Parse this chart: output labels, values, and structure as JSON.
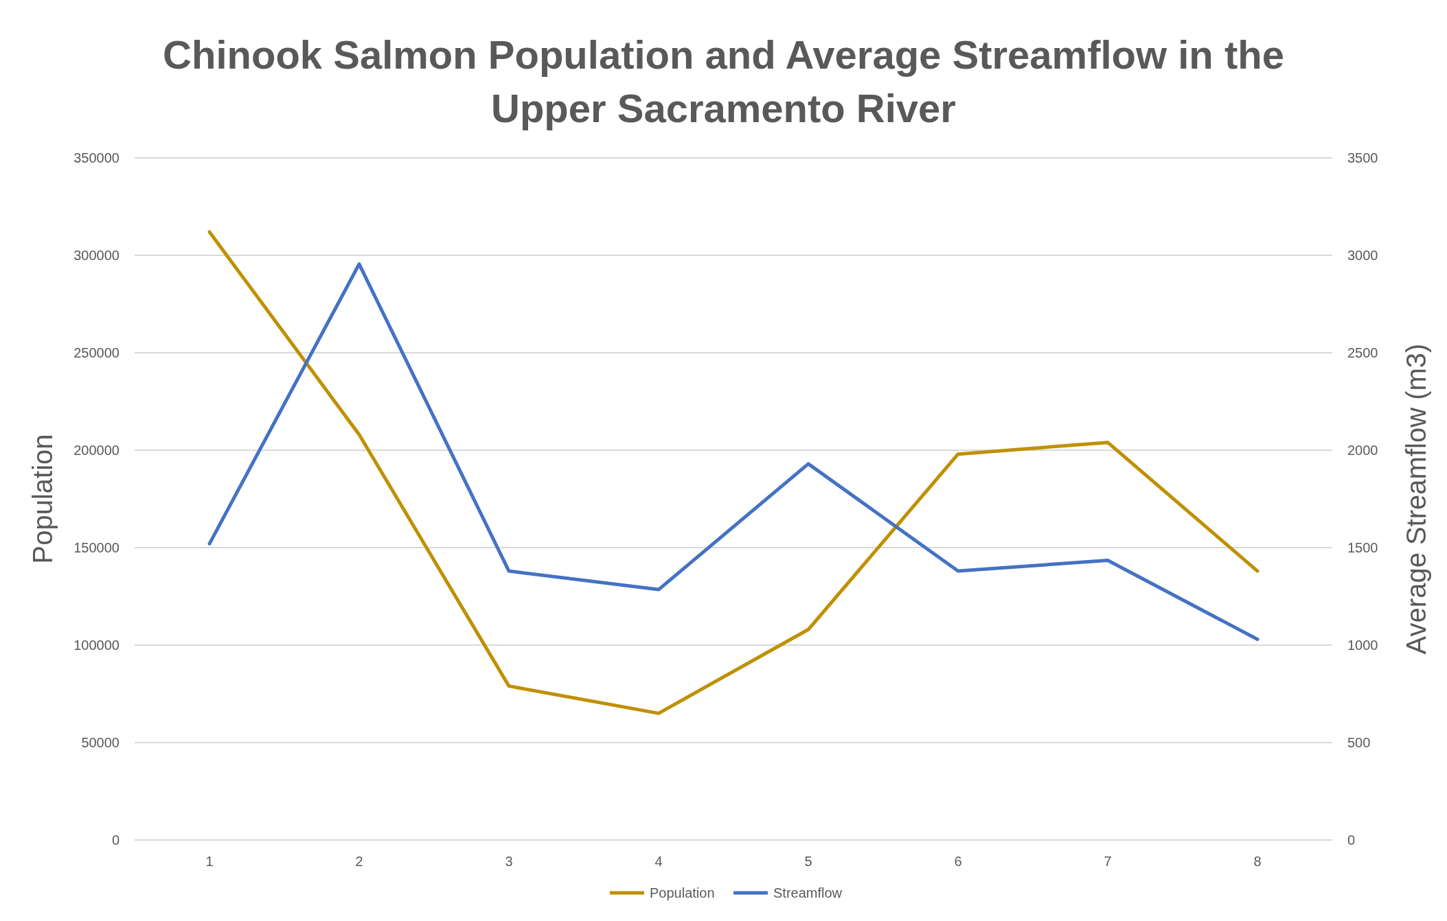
{
  "chart_data": {
    "type": "line",
    "title": "Chinook Salmon Population and Average Streamflow in the Upper Sacramento River",
    "ylabel": "Population",
    "y2label": "Average Streamflow (m3)",
    "categories": [
      "1",
      "2",
      "3",
      "4",
      "5",
      "6",
      "7",
      "8"
    ],
    "series": [
      {
        "name": "Population",
        "color": "#bf9000",
        "values": [
          312000,
          208000,
          79000,
          65000,
          108000,
          198000,
          204000,
          138000
        ]
      },
      {
        "name": "Streamflow",
        "color": "#4472c4",
        "axis": "y2",
        "values": [
          1520,
          2955,
          1380,
          1285,
          1930,
          1380,
          1435,
          1030
        ]
      }
    ],
    "ylim": [
      0,
      350000
    ],
    "yticks": [
      0,
      50000,
      100000,
      150000,
      200000,
      250000,
      300000,
      350000
    ],
    "y2lim": [
      0,
      3500
    ],
    "y2ticks": [
      0,
      500,
      1000,
      1500,
      2000,
      2500,
      3000,
      3500
    ],
    "grid": "y",
    "legend": "bottom",
    "marker": "none",
    "line_style": "solid"
  }
}
